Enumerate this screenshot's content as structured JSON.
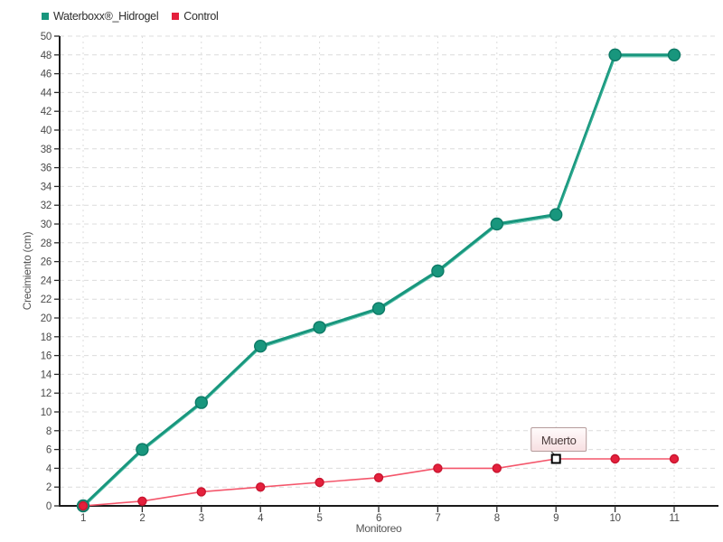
{
  "chart_data": {
    "type": "line",
    "title": "",
    "xlabel": "Monitoreo",
    "ylabel": "Crecimiento (cm)",
    "x": [
      1,
      2,
      3,
      4,
      5,
      6,
      7,
      8,
      9,
      10,
      11
    ],
    "xlim": [
      1,
      11
    ],
    "ylim": [
      0,
      50
    ],
    "ytick_step": 2,
    "grid": true,
    "legend_position": "top-left",
    "series": [
      {
        "name": "Waterboxx®_Hidrogel",
        "color": "#18967d",
        "highlight_color": "#3db89d",
        "marker_color": "#18967d",
        "marker_stroke": "#0d7a66",
        "line_width": 3.2,
        "marker_radius": 6.5,
        "values": [
          0,
          6,
          11,
          17,
          19,
          21,
          25,
          30,
          31,
          48,
          48
        ]
      },
      {
        "name": "Control",
        "color": "#f4566b",
        "highlight_color": "#f4566b",
        "marker_color": "#e4203c",
        "marker_stroke": "#c9152f",
        "line_width": 1.6,
        "marker_radius": 4.5,
        "values": [
          0,
          0.5,
          1.5,
          2,
          2.5,
          3,
          4,
          4,
          5,
          5,
          5
        ]
      }
    ],
    "annotation": {
      "label": "Muerto",
      "series_index": 1,
      "x": 9,
      "y": 5,
      "marker": "open-square"
    }
  },
  "colors": {
    "background": "#ffffff",
    "grid": "#dcdcdc",
    "axis": "#1a1a1a",
    "tick": "#2b2b2b",
    "tick_label": "#4a4a4a",
    "axis_title": "#555555",
    "annotation_fill_top": "#fffbfb",
    "annotation_fill_bottom": "#f7dfe1",
    "annotation_border": "#b59c9c",
    "annotation_text": "#4a3a3a",
    "annotation_marker_stroke": "#000000",
    "annotation_marker_fill": "#ffffff"
  }
}
